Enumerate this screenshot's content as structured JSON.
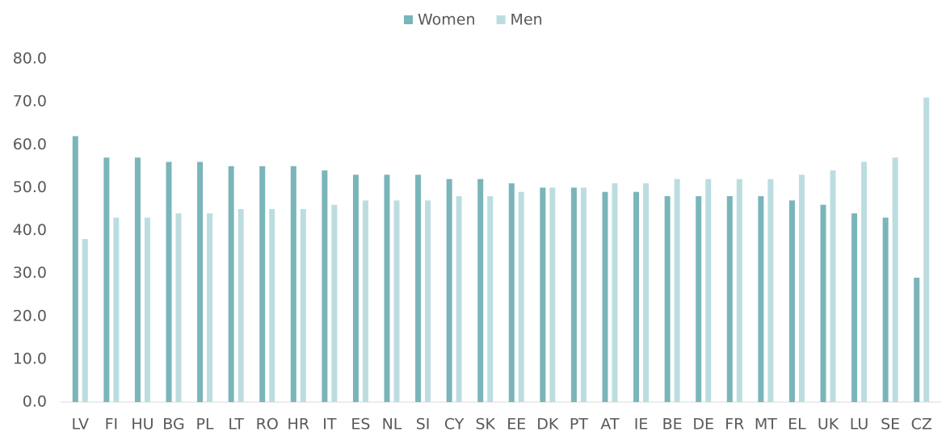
{
  "chart_data": {
    "type": "bar",
    "categories": [
      "LV",
      "FI",
      "HU",
      "BG",
      "PL",
      "LT",
      "RO",
      "HR",
      "IT",
      "ES",
      "NL",
      "SI",
      "CY",
      "SK",
      "EE",
      "DK",
      "PT",
      "AT",
      "IE",
      "BE",
      "DE",
      "FR",
      "MT",
      "EL",
      "UK",
      "LU",
      "SE",
      "CZ"
    ],
    "series": [
      {
        "name": "Women",
        "color": "#7ab5ba",
        "values": [
          62,
          57,
          57,
          56,
          56,
          55,
          55,
          55,
          54,
          53,
          53,
          53,
          52,
          52,
          51,
          50,
          50,
          49,
          49,
          48,
          48,
          48,
          48,
          47,
          46,
          44,
          43,
          29
        ]
      },
      {
        "name": "Men",
        "color": "#bcdde0",
        "values": [
          38,
          43,
          43,
          44,
          44,
          45,
          45,
          45,
          46,
          47,
          47,
          47,
          48,
          48,
          49,
          50,
          50,
          51,
          51,
          52,
          52,
          52,
          52,
          53,
          54,
          56,
          57,
          71
        ]
      }
    ],
    "ylim": [
      0,
      80
    ],
    "yticks": [
      {
        "value": 0,
        "label": "0.0"
      },
      {
        "value": 10,
        "label": "10.0"
      },
      {
        "value": 20,
        "label": "20.0"
      },
      {
        "value": 30,
        "label": "30.0"
      },
      {
        "value": 40,
        "label": "40.0"
      },
      {
        "value": 50,
        "label": "50.0"
      },
      {
        "value": 60,
        "label": "60.0"
      },
      {
        "value": 70,
        "label": "70.0"
      },
      {
        "value": 80,
        "label": "80.0"
      }
    ],
    "grid": false,
    "legend": "top"
  }
}
